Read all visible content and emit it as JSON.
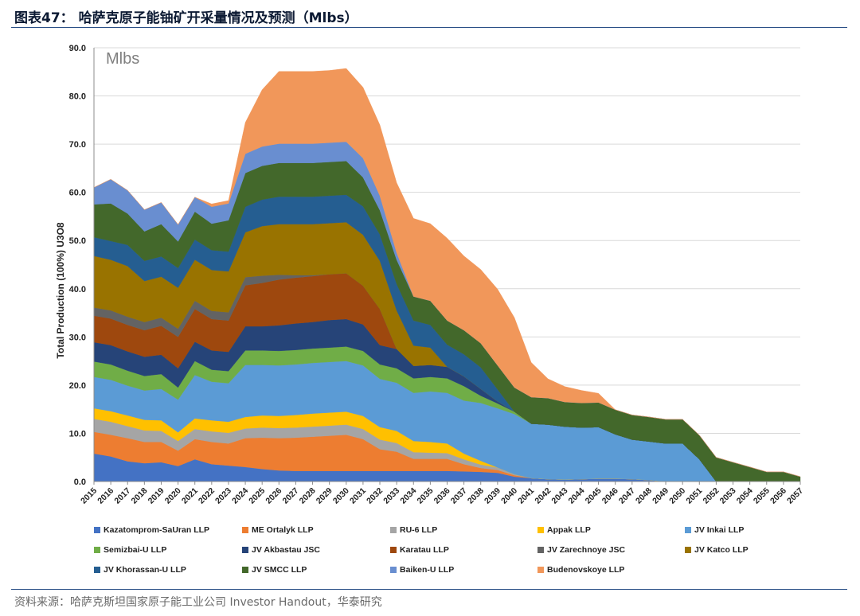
{
  "figure_title": "图表47： 哈萨克原子能铀矿开采量情况及预测（Mlbs）",
  "source_note": "资料来源：哈萨克斯坦国家原子能工业公司 Investor Handout，华泰研究",
  "chart_data": {
    "type": "area",
    "stacked": true,
    "unit_label": "Mlbs",
    "ylabel": "Total Production (100%) U3O8",
    "ylim": [
      0,
      90
    ],
    "yticks": [
      "0.0",
      "10.0",
      "20.0",
      "30.0",
      "40.0",
      "50.0",
      "60.0",
      "70.0",
      "80.0",
      "90.0"
    ],
    "grid": true,
    "legend_position": "bottom",
    "x": [
      "2015",
      "2016",
      "2017",
      "2018",
      "2019",
      "2020",
      "2021",
      "2022",
      "2023",
      "2024",
      "2025",
      "2026",
      "2027",
      "2028",
      "2029",
      "2030",
      "2031",
      "2032",
      "2033",
      "2034",
      "2035",
      "2036",
      "2037",
      "2038",
      "2039",
      "2040",
      "2041",
      "2042",
      "2043",
      "2044",
      "2045",
      "2046",
      "2047",
      "2048",
      "2049",
      "2050",
      "2051",
      "2052",
      "2053",
      "2054",
      "2055",
      "2056",
      "2057"
    ],
    "series": [
      {
        "name": "Kazatomprom-SaUran LLP",
        "color": "#4472C4",
        "values": [
          5.8,
          5.2,
          4.2,
          3.8,
          4.0,
          3.2,
          4.6,
          3.6,
          3.3,
          3.0,
          2.6,
          2.3,
          2.2,
          2.2,
          2.2,
          2.2,
          2.2,
          2.2,
          2.2,
          2.2,
          2.2,
          2.2,
          2.1,
          2.0,
          1.8,
          1.0,
          0.7,
          0.5,
          0.4,
          0.5,
          0.6,
          0.6,
          0.5,
          0.3,
          0,
          0,
          0,
          0,
          0,
          0,
          0,
          0,
          0
        ]
      },
      {
        "name": "ME Ortalyk LLP",
        "color": "#ED7D31",
        "values": [
          4.5,
          4.5,
          4.8,
          4.4,
          4.2,
          3.2,
          4.2,
          4.6,
          4.6,
          6.0,
          6.5,
          6.7,
          6.9,
          7.1,
          7.3,
          7.5,
          6.6,
          4.5,
          4.0,
          2.5,
          2.5,
          2.5,
          1.5,
          0.8,
          0.6,
          0.3,
          0,
          0,
          0,
          0,
          0,
          0,
          0,
          0,
          0,
          0,
          0,
          0,
          0,
          0,
          0,
          0,
          0
        ]
      },
      {
        "name": "RU-6 LLP",
        "color": "#A5A5A5",
        "values": [
          2.7,
          2.7,
          2.5,
          2.4,
          2.3,
          2.0,
          2.1,
          2.2,
          2.2,
          2.0,
          2.1,
          2.1,
          2.1,
          2.1,
          2.1,
          2.1,
          2.1,
          2.0,
          1.8,
          1.4,
          1.3,
          1.2,
          1.0,
          0.7,
          0.5,
          0.2,
          0,
          0,
          0,
          0,
          0,
          0,
          0,
          0,
          0,
          0,
          0,
          0,
          0,
          0,
          0,
          0,
          0
        ]
      },
      {
        "name": "Appak LLP",
        "color": "#FFC000",
        "values": [
          2.2,
          2.2,
          2.2,
          2.2,
          2.2,
          1.8,
          2.2,
          2.3,
          2.3,
          2.4,
          2.5,
          2.5,
          2.6,
          2.7,
          2.7,
          2.7,
          2.7,
          2.6,
          2.5,
          2.3,
          2.2,
          2.0,
          1.2,
          0.8,
          0,
          0,
          0,
          0,
          0,
          0,
          0,
          0,
          0,
          0,
          0,
          0,
          0,
          0,
          0,
          0,
          0,
          0,
          0
        ]
      },
      {
        "name": "JV Inkai LLP",
        "color": "#5B9BD5",
        "values": [
          6.5,
          6.5,
          6.2,
          6.1,
          6.5,
          6.8,
          9.0,
          8.0,
          8.0,
          10.8,
          10.5,
          10.5,
          10.5,
          10.5,
          10.5,
          10.5,
          10.5,
          10.0,
          10.0,
          10.0,
          10.5,
          10.5,
          11.0,
          12.0,
          12.3,
          12.5,
          11.3,
          11.3,
          11.0,
          10.7,
          10.7,
          9.2,
          8.2,
          8.0,
          7.9,
          7.9,
          4.6,
          0,
          0,
          0,
          0,
          0,
          0
        ]
      },
      {
        "name": "Semizbai-U LLP",
        "color": "#70AD47",
        "values": [
          3.2,
          3.2,
          3.1,
          3.0,
          3.1,
          2.5,
          2.9,
          2.5,
          2.5,
          3.0,
          3.0,
          3.0,
          3.0,
          3.0,
          3.0,
          3.0,
          3.0,
          3.0,
          3.0,
          3.0,
          3.0,
          3.0,
          3.0,
          1.5,
          1.0,
          0.5,
          0,
          0,
          0,
          0,
          0,
          0,
          0,
          0,
          0,
          0,
          0,
          0,
          0,
          0,
          0,
          0,
          0
        ]
      },
      {
        "name": "JV Akbastau JSC",
        "color": "#264478",
        "values": [
          4.0,
          4.0,
          4.0,
          4.0,
          4.0,
          4.0,
          4.0,
          4.0,
          4.0,
          5.0,
          5.0,
          5.3,
          5.5,
          5.5,
          5.7,
          5.7,
          5.5,
          4.0,
          4.0,
          2.6,
          2.5,
          2.4,
          2.0,
          1.4,
          0.4,
          0,
          0,
          0,
          0,
          0,
          0,
          0,
          0,
          0,
          0,
          0,
          0,
          0,
          0,
          0,
          0,
          0,
          0
        ]
      },
      {
        "name": "Karatau LLP",
        "color": "#9E480E",
        "values": [
          5.5,
          5.5,
          5.5,
          5.5,
          6.0,
          6.5,
          6.8,
          6.5,
          6.5,
          8.5,
          9.0,
          9.5,
          9.5,
          9.5,
          9.5,
          9.5,
          8.0,
          7.5,
          0,
          0,
          0,
          0,
          0,
          0,
          0,
          0,
          0,
          0,
          0,
          0,
          0,
          0,
          0,
          0,
          0,
          0,
          0,
          0,
          0,
          0,
          0,
          0,
          0
        ]
      },
      {
        "name": "JV Zarechnoye JSC",
        "color": "#636363",
        "values": [
          1.7,
          1.7,
          1.7,
          1.7,
          1.7,
          1.7,
          1.7,
          1.7,
          1.7,
          1.7,
          1.5,
          1.0,
          0.5,
          0.2,
          0,
          0,
          0,
          0,
          0,
          0,
          0,
          0,
          0,
          0,
          0,
          0,
          0,
          0,
          0,
          0,
          0,
          0,
          0,
          0,
          0,
          0,
          0,
          0,
          0,
          0,
          0,
          0,
          0
        ]
      },
      {
        "name": "JV Katco LLP",
        "color": "#997300",
        "values": [
          10.7,
          10.5,
          10.5,
          8.5,
          8.5,
          8.5,
          8.5,
          8.5,
          8.5,
          9.3,
          10.3,
          10.5,
          10.6,
          10.6,
          10.6,
          10.6,
          10.6,
          10.0,
          8.0,
          4.2,
          3.6,
          0,
          0,
          0,
          0,
          0,
          0,
          0,
          0,
          0,
          0,
          0,
          0,
          0,
          0,
          0,
          0,
          0,
          0,
          0,
          0,
          0,
          0
        ]
      },
      {
        "name": "JV Khorassan-U LLP",
        "color": "#255E91",
        "values": [
          3.9,
          3.9,
          4.4,
          4.2,
          4.2,
          4.1,
          4.2,
          4.1,
          4.1,
          5.3,
          5.5,
          5.7,
          5.7,
          5.7,
          5.7,
          5.7,
          5.9,
          5.5,
          5.5,
          5.2,
          4.7,
          4.6,
          4.6,
          4.5,
          2.5,
          0,
          0,
          0,
          0,
          0,
          0,
          0,
          0,
          0,
          0,
          0,
          0,
          0,
          0,
          0,
          0,
          0,
          0
        ]
      },
      {
        "name": "JV SMCC LLP",
        "color": "#43682B",
        "values": [
          6.8,
          7.8,
          6.5,
          6.1,
          6.7,
          5.5,
          5.8,
          5.5,
          6.5,
          7.0,
          7.0,
          7.0,
          7.0,
          7.0,
          7.0,
          7.0,
          6.0,
          5.0,
          5.0,
          5.0,
          5.0,
          5.0,
          5.0,
          5.0,
          5.0,
          5.0,
          5.5,
          5.5,
          5.1,
          5.1,
          5.1,
          5.1,
          5.1,
          5.1,
          5.0,
          5.0,
          5.0,
          5.0,
          4.0,
          3.0,
          2.0,
          2.0,
          1.0
        ]
      },
      {
        "name": "Baiken-U LLP",
        "color": "#698ED0",
        "values": [
          3.5,
          5.0,
          4.8,
          4.5,
          4.5,
          3.5,
          3.0,
          3.5,
          3.5,
          4.0,
          4.0,
          4.0,
          4.0,
          4.0,
          4.0,
          4.0,
          4.0,
          3.0,
          1.5,
          0,
          0,
          0,
          0,
          0,
          0,
          0,
          0,
          0,
          0,
          0,
          0,
          0,
          0,
          0,
          0,
          0,
          0,
          0,
          0,
          0,
          0,
          0,
          0
        ]
      },
      {
        "name": "Budenovskoye LLP",
        "color": "#F1975A",
        "values": [
          0,
          0,
          0,
          0,
          0,
          0,
          0,
          0.6,
          0.6,
          6.5,
          11.8,
          15.0,
          15.0,
          15.0,
          15.0,
          15.2,
          14.7,
          14.7,
          14.5,
          16.2,
          16.0,
          17.1,
          15.4,
          15.3,
          15.8,
          14.5,
          7.2,
          4.0,
          3.2,
          2.6,
          1.9,
          0,
          0,
          0,
          0,
          0,
          0,
          0,
          0,
          0,
          0,
          0,
          0
        ]
      }
    ]
  }
}
